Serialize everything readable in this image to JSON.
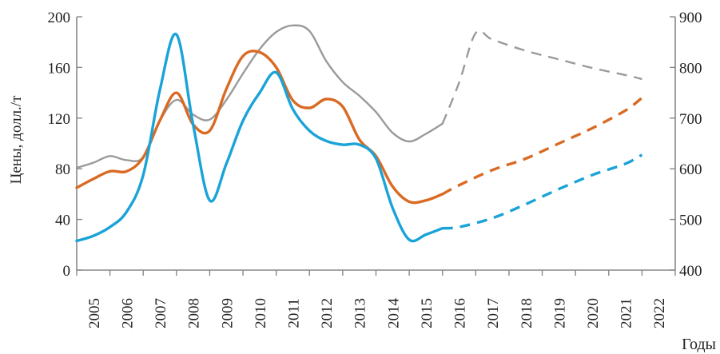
{
  "chart_data": {
    "type": "line",
    "xlabel": "Годы",
    "ylabel": "Цены, долл./т",
    "ylim": [
      0,
      200
    ],
    "y2lim": [
      400,
      900
    ],
    "yticks": [
      0,
      40,
      80,
      120,
      160,
      200
    ],
    "y2ticks": [
      400,
      500,
      600,
      700,
      800,
      900
    ],
    "categories": [
      "2005",
      "2006",
      "2007",
      "2008",
      "2009",
      "2010",
      "2011",
      "2012",
      "2013",
      "2014",
      "2015",
      "2016",
      "2017",
      "2018",
      "2019",
      "2020",
      "2021",
      "2022"
    ],
    "grid": false,
    "series": [
      {
        "color": "#9a9a9a",
        "axis": "right",
        "points": [
          [
            2004.5,
            602
          ],
          [
            2005,
            612
          ],
          [
            2005.5,
            625
          ],
          [
            2006,
            617
          ],
          [
            2006.5,
            623
          ],
          [
            2007,
            695
          ],
          [
            2007.5,
            736
          ],
          [
            2008,
            707
          ],
          [
            2008.5,
            697
          ],
          [
            2009,
            736
          ],
          [
            2009.5,
            788
          ],
          [
            2010,
            836
          ],
          [
            2010.5,
            870
          ],
          [
            2011,
            883
          ],
          [
            2011.5,
            872
          ],
          [
            2012,
            813
          ],
          [
            2012.5,
            771
          ],
          [
            2013,
            744
          ],
          [
            2013.5,
            712
          ],
          [
            2014,
            671
          ],
          [
            2014.5,
            654
          ],
          [
            2015,
            669
          ],
          [
            2015.5,
            689
          ]
        ],
        "forecast": [
          [
            2015.5,
            689
          ],
          [
            2016,
            770
          ],
          [
            2016.5,
            868
          ],
          [
            2017,
            855
          ],
          [
            2018,
            833
          ],
          [
            2019,
            816
          ],
          [
            2020,
            799
          ],
          [
            2021,
            785
          ],
          [
            2021.5,
            777
          ]
        ]
      },
      {
        "color": "#d96a23",
        "axis": "left",
        "points": [
          [
            2004.5,
            65
          ],
          [
            2005,
            72
          ],
          [
            2005.5,
            78
          ],
          [
            2006,
            78
          ],
          [
            2006.5,
            89
          ],
          [
            2007,
            118
          ],
          [
            2007.5,
            140
          ],
          [
            2008,
            115
          ],
          [
            2008.5,
            110
          ],
          [
            2009,
            143
          ],
          [
            2009.5,
            169
          ],
          [
            2010,
            172
          ],
          [
            2010.5,
            160
          ],
          [
            2011,
            134
          ],
          [
            2011.5,
            128
          ],
          [
            2012,
            135
          ],
          [
            2012.5,
            129
          ],
          [
            2013,
            103
          ],
          [
            2013.5,
            90
          ],
          [
            2014,
            66
          ],
          [
            2014.5,
            54
          ],
          [
            2015,
            55
          ],
          [
            2015.5,
            60
          ]
        ],
        "forecast": [
          [
            2015.5,
            60
          ],
          [
            2016,
            67
          ],
          [
            2017,
            79
          ],
          [
            2018,
            88
          ],
          [
            2019,
            100
          ],
          [
            2020,
            112
          ],
          [
            2021,
            126
          ],
          [
            2021.5,
            136
          ]
        ]
      },
      {
        "color": "#1aa3d8",
        "axis": "left",
        "points": [
          [
            2004.5,
            23
          ],
          [
            2005,
            27
          ],
          [
            2005.5,
            34
          ],
          [
            2006,
            46
          ],
          [
            2006.5,
            75
          ],
          [
            2007,
            142
          ],
          [
            2007.5,
            186
          ],
          [
            2008,
            115
          ],
          [
            2008.5,
            55
          ],
          [
            2009,
            84
          ],
          [
            2009.5,
            118
          ],
          [
            2010,
            140
          ],
          [
            2010.5,
            156
          ],
          [
            2011,
            127
          ],
          [
            2011.5,
            110
          ],
          [
            2012,
            102
          ],
          [
            2012.5,
            99
          ],
          [
            2013,
            99
          ],
          [
            2013.5,
            88
          ],
          [
            2014,
            49
          ],
          [
            2014.5,
            24
          ],
          [
            2015,
            28
          ],
          [
            2015.5,
            33
          ]
        ],
        "forecast": [
          [
            2015.5,
            33
          ],
          [
            2016,
            34
          ],
          [
            2017,
            41
          ],
          [
            2018,
            52
          ],
          [
            2019,
            64
          ],
          [
            2020,
            75
          ],
          [
            2021,
            84
          ],
          [
            2021.5,
            91
          ]
        ]
      }
    ]
  }
}
